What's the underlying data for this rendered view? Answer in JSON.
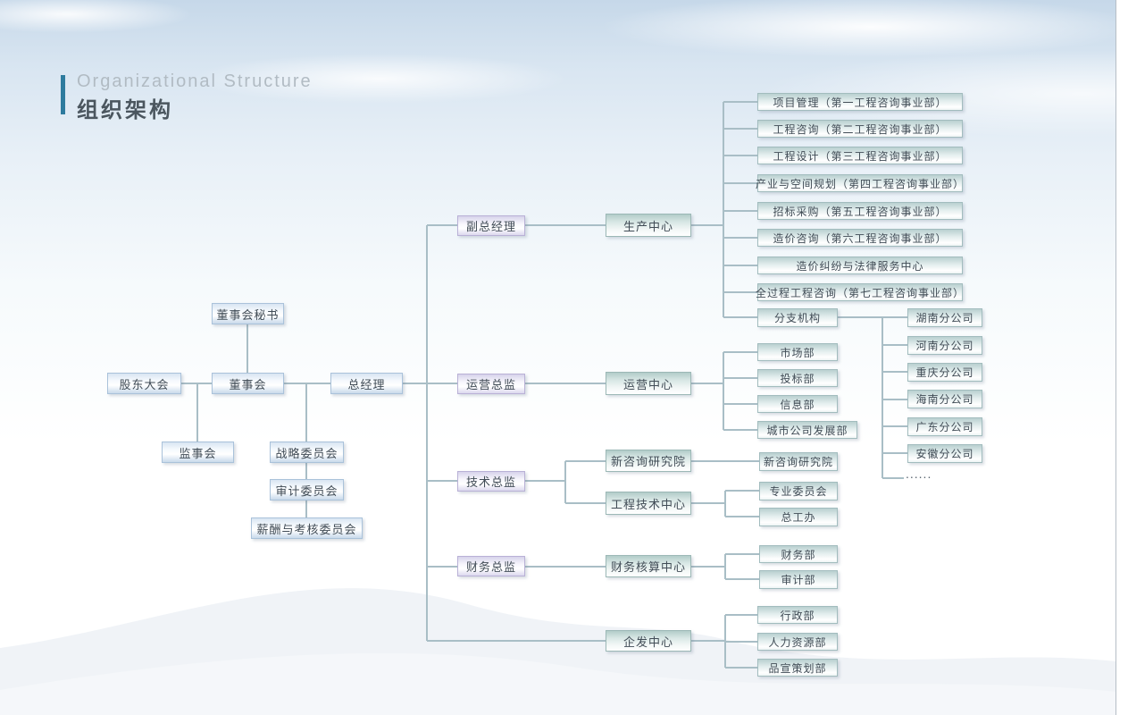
{
  "header": {
    "title_en": "Organizational Structure",
    "title_zh": "组织架构"
  },
  "palette": {
    "title_bar": "#2e7b9e",
    "connector_line": "#a9bec6",
    "governance_box_border": "#aac2da",
    "executive_box_border": "#b9b1d6",
    "center_box_border": "#9cb8b6"
  },
  "chart": {
    "ellipsis": "......",
    "nodes": [
      {
        "id": "board_secretary",
        "label": "董事会秘书"
      },
      {
        "id": "shareholders_meeting",
        "label": "股东大会"
      },
      {
        "id": "board",
        "label": "董事会"
      },
      {
        "id": "general_manager",
        "label": "总经理"
      },
      {
        "id": "supervisory_board",
        "label": "监事会"
      },
      {
        "id": "strategy_committee",
        "label": "战略委员会"
      },
      {
        "id": "audit_committee",
        "label": "审计委员会"
      },
      {
        "id": "compensation_committee",
        "label": "薪酬与考核委员会"
      },
      {
        "id": "deputy_general_manager",
        "label": "副总经理"
      },
      {
        "id": "operations_director",
        "label": "运营总监"
      },
      {
        "id": "technology_director",
        "label": "技术总监"
      },
      {
        "id": "finance_director",
        "label": "财务总监"
      },
      {
        "id": "production_center",
        "label": "生产中心"
      },
      {
        "id": "operations_center",
        "label": "运营中心"
      },
      {
        "id": "new_consulting_institute",
        "label": "新咨询研究院"
      },
      {
        "id": "engineering_technology_center",
        "label": "工程技术中心"
      },
      {
        "id": "finance_accounting_center",
        "label": "财务核算中心"
      },
      {
        "id": "enterprise_development_center",
        "label": "企发中心"
      },
      {
        "id": "dept_project_management",
        "label": "项目管理（第一工程咨询事业部）"
      },
      {
        "id": "dept_engineering_consulting",
        "label": "工程咨询（第二工程咨询事业部）"
      },
      {
        "id": "dept_engineering_design",
        "label": "工程设计（第三工程咨询事业部）"
      },
      {
        "id": "dept_industry_spatial_planning",
        "label": "产业与空间规划（第四工程咨询事业部）"
      },
      {
        "id": "dept_bidding_procurement",
        "label": "招标采购（第五工程咨询事业部）"
      },
      {
        "id": "dept_cost_consulting",
        "label": "造价咨询（第六工程咨询事业部）"
      },
      {
        "id": "dept_cost_dispute_legal",
        "label": "造价纠纷与法律服务中心"
      },
      {
        "id": "dept_whole_process_consulting",
        "label": "全过程工程咨询（第七工程咨询事业部）"
      },
      {
        "id": "branch_organizations",
        "label": "分支机构"
      },
      {
        "id": "branch_hunan",
        "label": "湖南分公司"
      },
      {
        "id": "branch_henan",
        "label": "河南分公司"
      },
      {
        "id": "branch_chongqing",
        "label": "重庆分公司"
      },
      {
        "id": "branch_hainan",
        "label": "海南分公司"
      },
      {
        "id": "branch_guangdong",
        "label": "广东分公司"
      },
      {
        "id": "branch_anhui",
        "label": "安徽分公司"
      },
      {
        "id": "dept_market",
        "label": "市场部"
      },
      {
        "id": "dept_bidding",
        "label": "投标部"
      },
      {
        "id": "dept_information",
        "label": "信息部"
      },
      {
        "id": "dept_city_company_development",
        "label": "城市公司发展部"
      },
      {
        "id": "unit_new_consulting_institute",
        "label": "新咨询研究院"
      },
      {
        "id": "unit_professional_committee",
        "label": "专业委员会"
      },
      {
        "id": "unit_chief_engineer_office",
        "label": "总工办"
      },
      {
        "id": "dept_finance",
        "label": "财务部"
      },
      {
        "id": "dept_audit",
        "label": "审计部"
      },
      {
        "id": "dept_administration",
        "label": "行政部"
      },
      {
        "id": "dept_human_resources",
        "label": "人力资源部"
      },
      {
        "id": "dept_brand_planning",
        "label": "品宣策划部"
      }
    ]
  }
}
